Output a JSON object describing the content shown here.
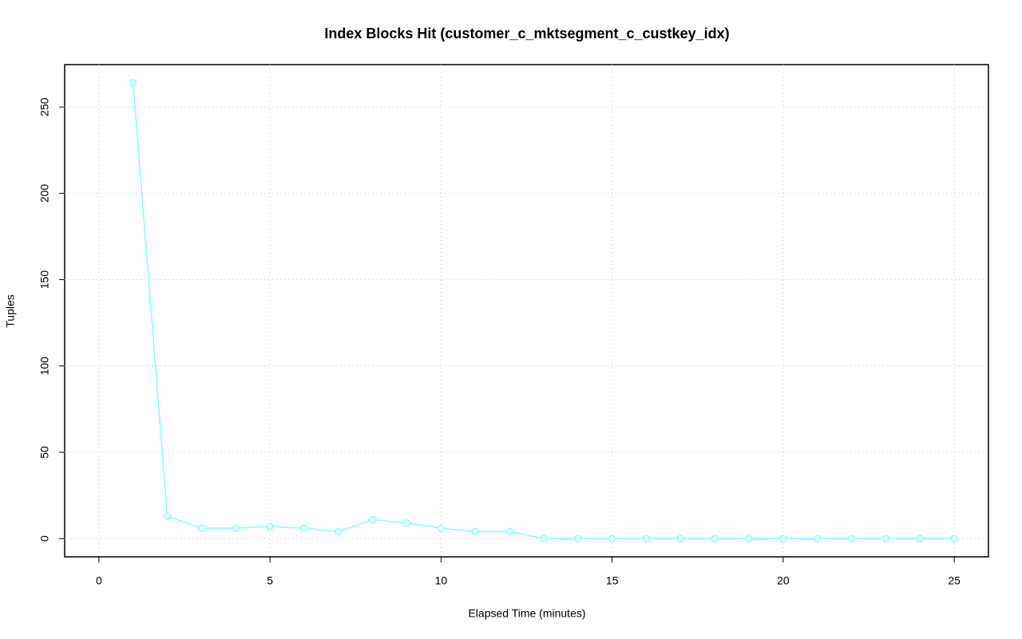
{
  "chart_data": {
    "type": "line",
    "title": "Index Blocks Hit (customer_c_mktsegment_c_custkey_idx)",
    "x_label": "Elapsed Time (minutes)",
    "y_label": "Tuples",
    "x": [
      1,
      2,
      3,
      4,
      5,
      6,
      7,
      8,
      9,
      10,
      11,
      12,
      13,
      14,
      15,
      16,
      17,
      18,
      19,
      20,
      21,
      22,
      23,
      24,
      25
    ],
    "series": [
      {
        "color": "#80ffff",
        "values": [
          264,
          13,
          6,
          6,
          7,
          6,
          4,
          11,
          9,
          6,
          4,
          4,
          0,
          0,
          0,
          0,
          0,
          0,
          0,
          0,
          0,
          0,
          0,
          0,
          0
        ]
      }
    ],
    "xlim": [
      -1,
      26
    ],
    "xticks": [
      0,
      5,
      10,
      15,
      20,
      25
    ],
    "ylim": [
      -10.56,
      274.56
    ],
    "yticks": [
      0,
      50,
      100,
      150,
      200,
      250
    ],
    "grid": true
  }
}
